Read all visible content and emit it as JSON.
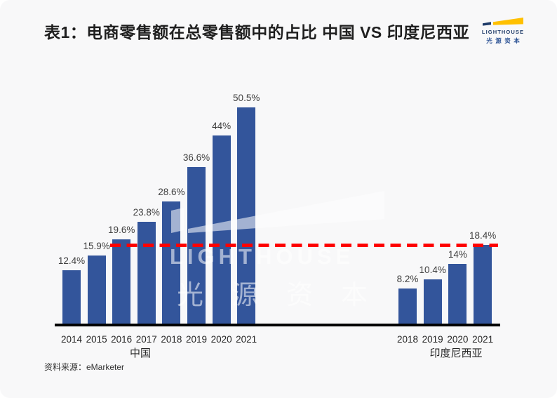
{
  "page": {
    "title": "表1：电商零售额在总零售额中的占比 中国 VS 印度尼西亚",
    "source": "资料来源：eMarketer",
    "background": "#f8f8f9"
  },
  "logo": {
    "name": "LIGHTHOUSE",
    "cn": "光源资本",
    "colors": {
      "navy": "#1e3a68",
      "blue": "#2e5496",
      "yellow": "#ffc000"
    }
  },
  "watermark": {
    "en": "LIGHTHOUSE",
    "cn": "光源资本"
  },
  "chart_data": {
    "type": "bar",
    "title": "表1：电商零售额在总零售额中的占比 中国 VS 印度尼西亚",
    "unit": "%",
    "ylim": [
      0,
      55
    ],
    "grid": false,
    "legend": "none",
    "bar_color": "#33559b",
    "groups": [
      {
        "label": "中国",
        "categories": [
          "2014",
          "2015",
          "2016",
          "2017",
          "2018",
          "2019",
          "2020",
          "2021"
        ],
        "values": [
          12.4,
          15.9,
          19.6,
          23.8,
          28.6,
          36.6,
          44,
          50.5
        ],
        "value_labels": [
          "12.4%",
          "15.9%",
          "19.6%",
          "23.8%",
          "28.6%",
          "36.6%",
          "44%",
          "50.5%"
        ]
      },
      {
        "label": "印度尼西亚",
        "categories": [
          "2018",
          "2019",
          "2020",
          "2021"
        ],
        "values": [
          8.2,
          10.4,
          14,
          18.4
        ],
        "value_labels": [
          "8.2%",
          "10.4%",
          "14%",
          "18.4%"
        ]
      }
    ],
    "reference_line": {
      "value": 18.4,
      "color": "#fe0000",
      "style": "dashed"
    },
    "source": "资料来源：eMarketer"
  }
}
